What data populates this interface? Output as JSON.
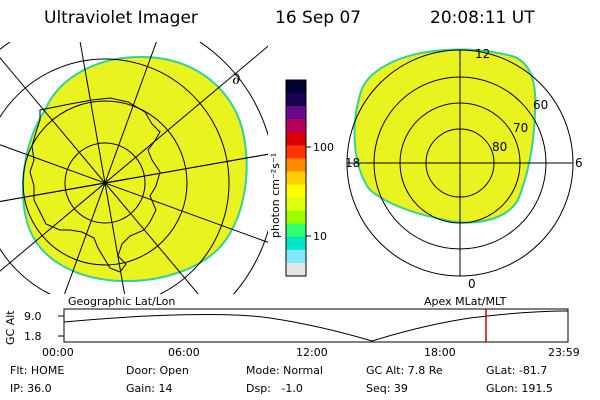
{
  "header": {
    "title": "Ultraviolet Imager",
    "date": "16 Sep 07",
    "time": "20:08:11 UT"
  },
  "colorbar": {
    "unit_label": "photon cm⁻²s⁻¹",
    "ticks": [
      "100",
      "10"
    ],
    "colors": [
      "#000033",
      "#1a0055",
      "#6a0a8a",
      "#b4005a",
      "#d80000",
      "#ff3300",
      "#ff8a00",
      "#ffd000",
      "#ffff00",
      "#dcff10",
      "#9aff00",
      "#30ff70",
      "#00e6c8",
      "#7fe8ff",
      "#e6e6e6"
    ]
  },
  "left_map": {
    "caption": "Geographic Lat/Lon",
    "glyph": "∂"
  },
  "right_map": {
    "caption": "Apex MLat/MLT",
    "mlat_labels": [
      "60",
      "70",
      "80"
    ],
    "mlt_labels": {
      "top": "12",
      "left": "18",
      "right": "6",
      "bottom": "0"
    }
  },
  "gc_alt_plot": {
    "ylabel": "GC Alt",
    "ytick_top": "9.0",
    "ytick_bottom": "1.8",
    "xticks": [
      "00:00",
      "06:00",
      "12:00",
      "18:00",
      "23:59"
    ]
  },
  "status": {
    "flt": "Flt: HOME",
    "ip": "IP: 36.0",
    "door": "Door: Open",
    "gain": "Gain: 14",
    "mode": "Mode: Normal",
    "dsp": "Dsp:   -1.0",
    "gcalt": "GC Alt: 7.8 Re",
    "seq": "Seq: 39",
    "glat": "GLat: -81.7",
    "glon": "GLon: 191.5"
  },
  "colors": {
    "emission_fill": "#eaf31f",
    "edge": "#33d09a",
    "marker": "#cc0000"
  }
}
